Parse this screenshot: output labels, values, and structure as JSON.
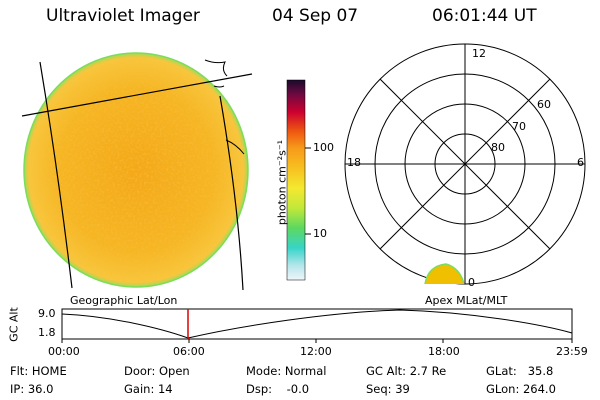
{
  "header": {
    "instrument": "Ultraviolet Imager",
    "date": "04 Sep 07",
    "time": "06:01:44 UT"
  },
  "colorbar": {
    "unit_label": "photon cm⁻²s⁻¹",
    "ticks": [
      "100",
      "10"
    ]
  },
  "polar_plot": {
    "mlt_labels": [
      "12",
      "18",
      "6",
      "0"
    ],
    "lat_labels": [
      "60",
      "70",
      "80"
    ]
  },
  "projection": {
    "left_label": "Geographic Lat/Lon",
    "right_label": "Apex MLat/MLT"
  },
  "altitude_plot": {
    "ylabel": "GC Alt",
    "y_ticks": [
      "9.0",
      "1.8"
    ],
    "x_ticks": [
      "00:00",
      "06:00",
      "12:00",
      "18:00",
      "23:59"
    ],
    "colors": {
      "marker": "#dd0000",
      "trace": "#000000"
    }
  },
  "info": {
    "flt": "Flt: HOME",
    "ip": "IP: 36.0",
    "door": "Door: Open",
    "gain": "Gain: 14",
    "mode": "Mode: Normal",
    "dsp": "Dsp:    -0.0",
    "gcalt": "GC Alt: 2.7 Re",
    "seq": "Seq: 39",
    "glat": "GLat:   35.8",
    "glon": "GLon: 264.0"
  },
  "colors": {
    "disk_fill": "#f5b41e",
    "disk_edge": "#7ddc5a",
    "aurora": "#f0c000"
  }
}
